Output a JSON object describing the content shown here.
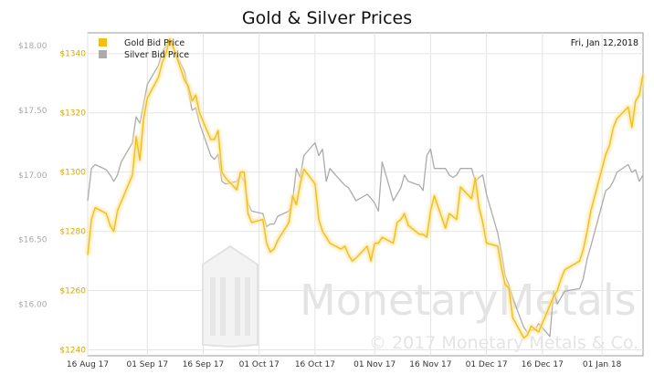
{
  "chart_data": {
    "type": "line",
    "title": "Gold & Silver Prices",
    "date_label": "Fri, Jan 12,2018",
    "xlabel": "",
    "x_ticks": [
      "16 Aug 17",
      "01 Sep 17",
      "16 Sep 17",
      "01 Oct 17",
      "16 Oct 17",
      "01 Nov 17",
      "16 Nov 17",
      "01 Dec 17",
      "16 Dec 17",
      "01 Jan 18"
    ],
    "y_left_ticks": [
      "$1340",
      "$1320",
      "$1300",
      "$1280",
      "$1260",
      "$1240"
    ],
    "y_right_ticks": [
      "$18.00",
      "$17.50",
      "$17.00",
      "$16.50",
      "$16.00"
    ],
    "y_left_range": [
      1238,
      1347
    ],
    "y_right_range": [
      15.6,
      18.1
    ],
    "x_range": [
      "2017-08-16",
      "2018-01-12"
    ],
    "grid": true,
    "legend_position": "top-left",
    "colors": {
      "gold": "#f2be1a",
      "silver": "#ababab"
    },
    "watermark": {
      "brand": "MonetaryMetals",
      "copyright": "© 2017 Monetary Metals & Co."
    },
    "series": [
      {
        "name": "Gold Bid Price",
        "axis": "left",
        "color": "#f2be1a",
        "x": [
          "2017-08-16",
          "2017-08-17",
          "2017-08-18",
          "2017-08-21",
          "2017-08-22",
          "2017-08-23",
          "2017-08-24",
          "2017-08-25",
          "2017-08-28",
          "2017-08-29",
          "2017-08-30",
          "2017-08-31",
          "2017-09-01",
          "2017-09-04",
          "2017-09-05",
          "2017-09-06",
          "2017-09-07",
          "2017-09-08",
          "2017-09-11",
          "2017-09-12",
          "2017-09-13",
          "2017-09-14",
          "2017-09-15",
          "2017-09-18",
          "2017-09-19",
          "2017-09-20",
          "2017-09-21",
          "2017-09-22",
          "2017-09-25",
          "2017-09-26",
          "2017-09-27",
          "2017-09-28",
          "2017-09-29",
          "2017-10-02",
          "2017-10-03",
          "2017-10-04",
          "2017-10-05",
          "2017-10-06",
          "2017-10-09",
          "2017-10-10",
          "2017-10-11",
          "2017-10-12",
          "2017-10-13",
          "2017-10-16",
          "2017-10-17",
          "2017-10-18",
          "2017-10-19",
          "2017-10-20",
          "2017-10-23",
          "2017-10-24",
          "2017-10-25",
          "2017-10-26",
          "2017-10-27",
          "2017-10-30",
          "2017-10-31",
          "2017-11-01",
          "2017-11-02",
          "2017-11-03",
          "2017-11-06",
          "2017-11-07",
          "2017-11-08",
          "2017-11-09",
          "2017-11-10",
          "2017-11-13",
          "2017-11-14",
          "2017-11-15",
          "2017-11-16",
          "2017-11-17",
          "2017-11-20",
          "2017-11-21",
          "2017-11-22",
          "2017-11-23",
          "2017-11-24",
          "2017-11-27",
          "2017-11-28",
          "2017-11-29",
          "2017-11-30",
          "2017-12-01",
          "2017-12-04",
          "2017-12-05",
          "2017-12-06",
          "2017-12-07",
          "2017-12-08",
          "2017-12-11",
          "2017-12-12",
          "2017-12-13",
          "2017-12-14",
          "2017-12-15",
          "2017-12-18",
          "2017-12-19",
          "2017-12-20",
          "2017-12-21",
          "2017-12-22",
          "2017-12-26",
          "2017-12-27",
          "2017-12-28",
          "2017-12-29",
          "2018-01-02",
          "2018-01-03",
          "2018-01-04",
          "2018-01-05",
          "2018-01-08",
          "2018-01-09",
          "2018-01-10",
          "2018-01-11",
          "2018-01-12"
        ],
        "values": [
          1272,
          1284,
          1288,
          1286,
          1282,
          1280,
          1287,
          1290,
          1299,
          1312,
          1304,
          1318,
          1325,
          1332,
          1337,
          1340,
          1345,
          1342,
          1331,
          1329,
          1324,
          1326,
          1320,
          1311,
          1311,
          1314,
          1300,
          1298,
          1294,
          1300,
          1300,
          1286,
          1283,
          1284,
          1276,
          1273,
          1274,
          1277,
          1283,
          1292,
          1289,
          1296,
          1301,
          1296,
          1284,
          1280,
          1278,
          1276,
          1274,
          1275,
          1272,
          1270,
          1271,
          1275,
          1270,
          1276,
          1276,
          1278,
          1276,
          1283,
          1284,
          1286,
          1282,
          1279,
          1279,
          1278,
          1287,
          1292,
          1281,
          1286,
          1285,
          1284,
          1295,
          1291,
          1298,
          1288,
          1283,
          1276,
          1275,
          1268,
          1262,
          1261,
          1251,
          1244,
          1245,
          1248,
          1247,
          1246,
          1255,
          1258,
          1260,
          1264,
          1267,
          1270,
          1274,
          1280,
          1287,
          1306,
          1309,
          1315,
          1318,
          1322,
          1315,
          1324,
          1326,
          1333
        ]
      },
      {
        "name": "Silver Bid Price",
        "axis": "right",
        "color": "#ababab",
        "x": [
          "2017-08-16",
          "2017-08-17",
          "2017-08-18",
          "2017-08-21",
          "2017-08-22",
          "2017-08-23",
          "2017-08-24",
          "2017-08-25",
          "2017-08-28",
          "2017-08-29",
          "2017-08-30",
          "2017-08-31",
          "2017-09-01",
          "2017-09-04",
          "2017-09-05",
          "2017-09-06",
          "2017-09-07",
          "2017-09-08",
          "2017-09-11",
          "2017-09-12",
          "2017-09-13",
          "2017-09-14",
          "2017-09-15",
          "2017-09-18",
          "2017-09-19",
          "2017-09-20",
          "2017-09-21",
          "2017-09-22",
          "2017-09-25",
          "2017-09-26",
          "2017-09-27",
          "2017-09-28",
          "2017-09-29",
          "2017-10-02",
          "2017-10-03",
          "2017-10-04",
          "2017-10-05",
          "2017-10-06",
          "2017-10-09",
          "2017-10-10",
          "2017-10-11",
          "2017-10-12",
          "2017-10-13",
          "2017-10-16",
          "2017-10-17",
          "2017-10-18",
          "2017-10-19",
          "2017-10-20",
          "2017-10-23",
          "2017-10-24",
          "2017-10-25",
          "2017-10-26",
          "2017-10-27",
          "2017-10-30",
          "2017-10-31",
          "2017-11-01",
          "2017-11-02",
          "2017-11-03",
          "2017-11-06",
          "2017-11-07",
          "2017-11-08",
          "2017-11-09",
          "2017-11-10",
          "2017-11-13",
          "2017-11-14",
          "2017-11-15",
          "2017-11-16",
          "2017-11-17",
          "2017-11-20",
          "2017-11-21",
          "2017-11-22",
          "2017-11-23",
          "2017-11-24",
          "2017-11-27",
          "2017-11-28",
          "2017-11-29",
          "2017-11-30",
          "2017-12-01",
          "2017-12-04",
          "2017-12-05",
          "2017-12-06",
          "2017-12-07",
          "2017-12-08",
          "2017-12-11",
          "2017-12-12",
          "2017-12-13",
          "2017-12-14",
          "2017-12-15",
          "2017-12-18",
          "2017-12-19",
          "2017-12-20",
          "2017-12-21",
          "2017-12-22",
          "2017-12-26",
          "2017-12-27",
          "2017-12-28",
          "2017-12-29",
          "2018-01-02",
          "2018-01-03",
          "2018-01-04",
          "2018-01-05",
          "2018-01-08",
          "2018-01-09",
          "2018-01-10",
          "2018-01-11",
          "2018-01-12"
        ],
        "values": [
          16.8,
          17.05,
          17.08,
          17.04,
          17.0,
          16.95,
          17.0,
          17.1,
          17.25,
          17.45,
          17.4,
          17.55,
          17.7,
          17.85,
          17.95,
          18.0,
          18.05,
          17.98,
          17.8,
          17.65,
          17.5,
          17.52,
          17.4,
          17.15,
          17.12,
          17.16,
          16.95,
          16.93,
          16.95,
          17.0,
          16.95,
          16.78,
          16.72,
          16.7,
          16.6,
          16.62,
          16.62,
          16.68,
          16.72,
          16.8,
          17.05,
          16.98,
          17.15,
          17.25,
          17.15,
          17.2,
          16.95,
          17.05,
          16.95,
          16.92,
          16.9,
          16.85,
          16.8,
          16.85,
          16.82,
          16.78,
          16.72,
          17.1,
          16.8,
          16.85,
          16.9,
          17.0,
          16.95,
          16.92,
          16.88,
          17.15,
          17.2,
          17.05,
          17.05,
          17.0,
          16.98,
          17.0,
          17.05,
          17.05,
          16.95,
          16.98,
          17.0,
          16.85,
          16.55,
          16.4,
          16.22,
          16.15,
          16.05,
          15.82,
          15.78,
          15.8,
          15.8,
          15.85,
          15.75,
          16.1,
          16.0,
          16.05,
          16.1,
          16.12,
          16.2,
          16.35,
          16.45,
          16.88,
          16.9,
          16.95,
          17.02,
          17.08,
          17.02,
          17.04,
          16.95,
          17.0
        ]
      }
    ]
  }
}
